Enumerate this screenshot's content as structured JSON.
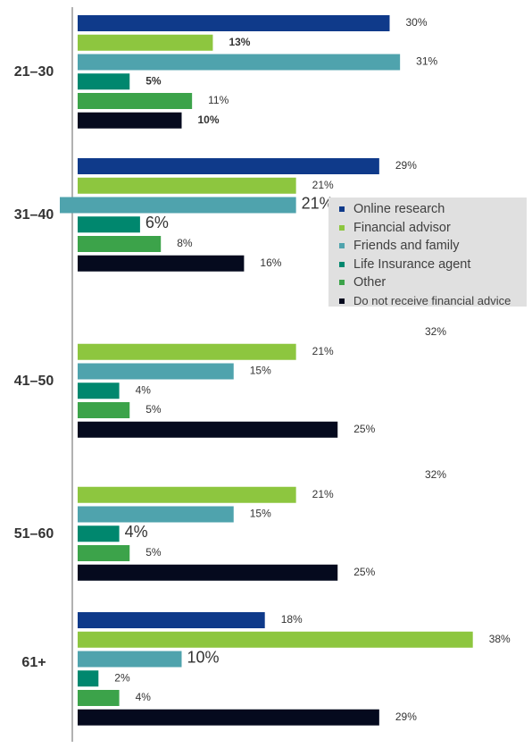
{
  "chart_data": {
    "type": "bar",
    "orientation": "horizontal",
    "categories": [
      "21–30",
      "31–40",
      "41–50",
      "51–60",
      "61+"
    ],
    "series": [
      {
        "name": "Online research",
        "color": "#0f3a8a",
        "values": [
          30,
          29,
          32,
          32,
          18
        ]
      },
      {
        "name": "Financial advisor",
        "color": "#8dc63f",
        "values": [
          13,
          21,
          21,
          21,
          38
        ]
      },
      {
        "name": "Friends and family",
        "color": "#4fa3ad",
        "values": [
          31,
          21,
          15,
          15,
          10
        ]
      },
      {
        "name": "Life Insurance agent",
        "color": "#00876e",
        "values": [
          5,
          6,
          4,
          4,
          2
        ]
      },
      {
        "name": "Other",
        "color": "#3ca34a",
        "values": [
          11,
          8,
          5,
          5,
          4
        ]
      },
      {
        "name": "Do not receive financial advice",
        "color": "#050a1e",
        "values": [
          10,
          16,
          25,
          25,
          29
        ]
      }
    ],
    "value_labels": [
      [
        "30%",
        "13%",
        "31%",
        "5%",
        "11%",
        "10%"
      ],
      [
        "29%",
        "21%",
        "21%",
        "6%",
        "8%",
        "16%"
      ],
      [
        "32%",
        "21%",
        "15%",
        "4%",
        "5%",
        "25%"
      ],
      [
        "32%",
        "21%",
        "15%",
        "4%",
        "5%",
        "25%"
      ],
      [
        "18%",
        "38%",
        "10%",
        "2%",
        "4%",
        "29%"
      ]
    ],
    "hidden_bars": [
      [
        2,
        0
      ],
      [
        3,
        0
      ]
    ],
    "large_labels": [
      [
        1,
        2
      ],
      [
        1,
        3
      ],
      [
        3,
        3
      ],
      [
        4,
        2
      ]
    ],
    "bold_labels": [
      [
        0,
        1
      ],
      [
        0,
        3
      ],
      [
        0,
        5
      ]
    ],
    "legend_position": "right",
    "grid": false
  }
}
